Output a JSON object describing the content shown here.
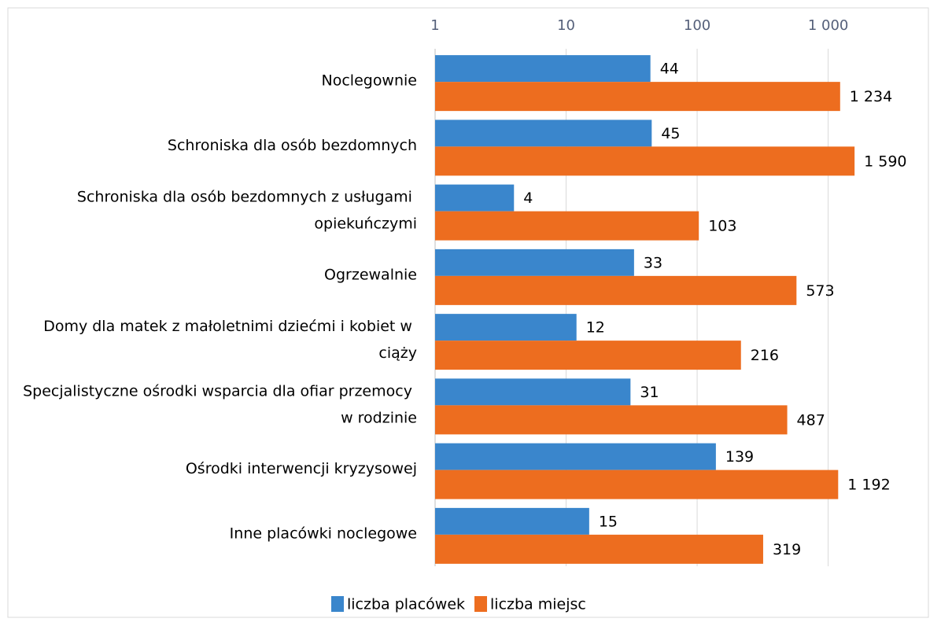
{
  "chart_data": {
    "type": "bar",
    "orientation": "horizontal",
    "categories": [
      "Noclegownie",
      "Schroniska dla osób bezdomnych",
      "Schroniska dla osób bezdomnych z usługami opiekuńczymi",
      "Ogrzewalnie",
      "Domy dla matek z małoletnimi dziećmi i kobiet w ciąży",
      "Specjalistyczne ośrodki wsparcia dla ofiar przemocy w rodzinie",
      "Ośrodki interwencji kryzysowej",
      "Inne placówki noclegowe"
    ],
    "series": [
      {
        "name": "liczba placówek",
        "color": "#3a86cc",
        "values": [
          44,
          45,
          4,
          33,
          12,
          31,
          139,
          15
        ]
      },
      {
        "name": "liczba miejsc",
        "color": "#ed6d1f",
        "values": [
          1234,
          1590,
          103,
          573,
          216,
          487,
          1192,
          319
        ],
        "value_labels": [
          "1 234",
          "1 590",
          "103",
          "573",
          "216",
          "487",
          "1 192",
          "319"
        ]
      }
    ],
    "xlim": [
      1,
      5000
    ],
    "xscale": "log",
    "xticks": [
      1,
      10,
      100,
      {
        "value": 1000,
        "label": "1 000"
      }
    ],
    "grid": true,
    "legend": "bottom"
  }
}
